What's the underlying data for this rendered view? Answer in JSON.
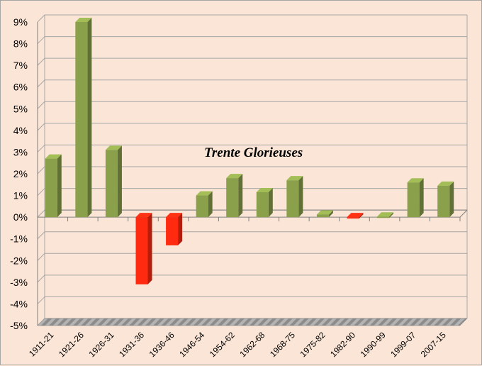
{
  "chart_data": {
    "type": "bar",
    "categories": [
      "1911-21",
      "1921-26",
      "1926-31",
      "1931-36",
      "1936-46",
      "1946-54",
      "1954-62",
      "1962-68",
      "1968-75",
      "1975-82",
      "1982-90",
      "1990-99",
      "1999-07",
      "2007-15"
    ],
    "values": [
      2.7,
      9.0,
      3.1,
      -3.1,
      -1.3,
      1.0,
      1.8,
      1.15,
      1.7,
      0.12,
      -0.05,
      0.03,
      1.6,
      1.45
    ],
    "ylim": [
      -5,
      9
    ],
    "yticks": [
      "9%",
      "8%",
      "7%",
      "6%",
      "5%",
      "4%",
      "3%",
      "2%",
      "1%",
      "0%",
      "-1%",
      "-2%",
      "-3%",
      "-4%",
      "-5%"
    ],
    "grid": true,
    "annotation": "Trente Glorieuses",
    "colors": {
      "positive": "#8aa04a",
      "negative": "#ff2a10",
      "background": "#fbe5d6",
      "grid": "#a6a6a6"
    }
  }
}
